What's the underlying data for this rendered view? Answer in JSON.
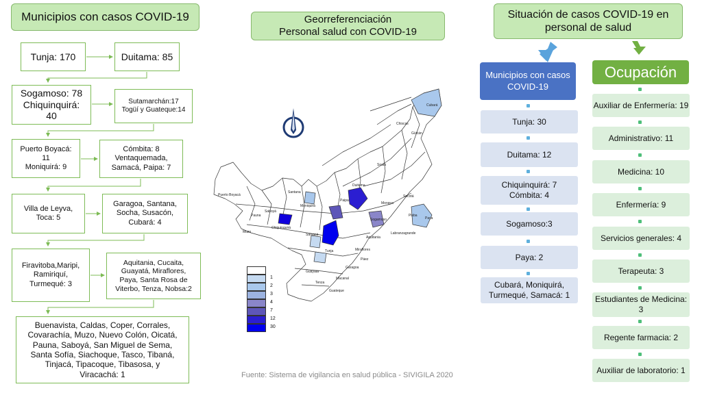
{
  "left": {
    "title": "Municipios con casos COVID-19",
    "boxes": [
      "Tunja: 170",
      "Duitama: 85",
      "Sogamoso: 78\nChiquinquirá:\n40",
      "Sutamarchán:17\nTogüí y Guateque:14",
      "Puerto Boyacá:\n11\nMoniquirá: 9",
      "Cómbita: 8\nVentaquemada,\nSamacá, Paipa: 7",
      "Villa de Leyva,\nToca: 5",
      "Garagoa, Santana,\nSocha, Susacón,\nCubará: 4",
      "Firavitoba,Maripi,\nRamiriquí,\nTurmequé: 3",
      "Aquitania, Cucaita,\nGuayatá, Miraflores,\nPaya, Santa Rosa de\nViterbo, Tenza, Nobsa:2",
      "Buenavista, Caldas, Coper, Corrales,\nCovarachía, Muzo, Nuevo Colón, Oicatá,\nPauna, Saboyá, San Miguel de Sema,\nSanta Sofía, Siachoque, Tasco, Tibaná,\nTinjacá, Tipacoque, Tibasosa, y\nViracachá: 1"
    ]
  },
  "center": {
    "title": "Georreferenciación\nPersonal salud con COVID-19",
    "legend": [
      {
        "label": "",
        "color": "#ffffff"
      },
      {
        "label": "1",
        "color": "#c5daf1"
      },
      {
        "label": "2",
        "color": "#a9c8ec"
      },
      {
        "label": "3",
        "color": "#9cb3e0"
      },
      {
        "label": "4",
        "color": "#8a86c9"
      },
      {
        "label": "7",
        "color": "#5e56b8"
      },
      {
        "label": "12",
        "color": "#2b1ed1"
      },
      {
        "label": "30",
        "color": "#0000ee"
      }
    ],
    "map_labels": [
      "Cubará",
      "Chiscas",
      "Güicán",
      "Puerto Boyacá",
      "Labranzagrande",
      "Paya",
      "Pisba",
      "Socotá",
      "Mongua",
      "Aquitania",
      "Tunja",
      "Garagoa",
      "Guateque",
      "Santana",
      "Saboyá",
      "Pauna",
      "Muzo",
      "Chiquinquirá",
      "Sogamoso",
      "Duitama",
      "Paipa",
      "Moniquirá",
      "Samacá",
      "Miraflores",
      "Tenza",
      "Soatá",
      "Páez",
      "Macanal",
      "Guayatá"
    ],
    "source": "Fuente: Sistema de vigilancia en salud pública - SIVIGILA 2020"
  },
  "right": {
    "title": "Situación de casos COVID-19 en\npersonal de salud",
    "municipios": {
      "header": "Municipios con casos\nCOVID-19",
      "items": [
        "Tunja: 30",
        "Duitama: 12",
        "Chiquinquirá: 7\nCómbita: 4",
        "Sogamoso:3",
        "Paya: 2",
        "Cubará, Moniquirá,\nTurmequé, Samacá: 1"
      ]
    },
    "ocupacion": {
      "header": "Ocupación",
      "items": [
        "Auxiliar de Enfermería: 19",
        "Administrativo:  11",
        "Medicina: 10",
        "Enfermería: 9",
        "Servicios generales: 4",
        "Terapeuta: 3",
        "Estudiantes de Medicina:\n3",
        "Regente farmacia: 2",
        "Auxiliar de laboratorio: 1"
      ]
    }
  },
  "colors": {
    "green_button": "#c6e9b5",
    "green_border": "#7dbb55",
    "blue_header": "#4a72c4",
    "green_header": "#72b043",
    "municipio_box": "#dbe3f1",
    "ocupacion_box": "#dcefdc"
  }
}
